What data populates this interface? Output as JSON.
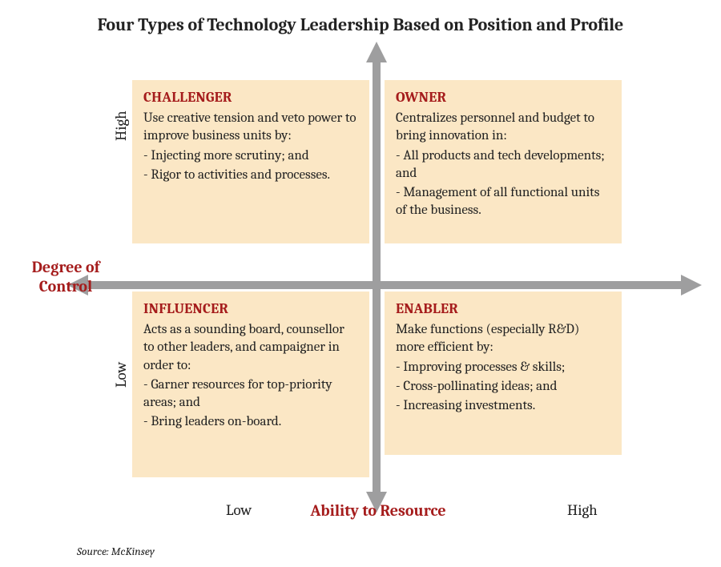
{
  "type": "quadrant-2x2",
  "title": "Four Types of Technology Leadership Based on Position and Profile",
  "source": "Source: McKinsey",
  "colors": {
    "background": "#ffffff",
    "quadrant_fill": "#fbe7c5",
    "axis": "#9e9e9f",
    "accent_text": "#a51c1c",
    "body_text": "#222222"
  },
  "fontsize": {
    "title": 22,
    "axis_title": 20,
    "axis_tick": 19,
    "quad_heading": 18,
    "body": 17,
    "source": 14
  },
  "y_axis": {
    "title": "Degree of Control",
    "high_label": "High",
    "low_label": "Low"
  },
  "x_axis": {
    "title": "Ability to Resource",
    "high_label": "High",
    "low_label": "Low"
  },
  "quadrants": {
    "top_left": {
      "heading": "CHALLENGER",
      "lead": "Use creative tension and veto power to improve business units by:",
      "bullets": [
        "- Injecting more scrutiny; and",
        "- Rigor to activities and processes."
      ]
    },
    "top_right": {
      "heading": "OWNER",
      "lead": "Centralizes personnel and budget to bring innovation in:",
      "bullets": [
        "- All products and tech developments; and",
        "- Management of all functional units of the business."
      ]
    },
    "bottom_left": {
      "heading": "INFLUENCER",
      "lead": "Acts as a sounding board, counsellor to other leaders, and campaigner in order to:",
      "bullets": [
        "- Garner resources for top-priority areas; and",
        "- Bring leaders on-board."
      ]
    },
    "bottom_right": {
      "heading": "ENABLER",
      "lead": "Make functions (especially R&D) more efficient by:",
      "bullets": [
        "- Improving processes & skills;",
        "- Cross-pollinating ideas; and",
        "- Increasing investments."
      ]
    }
  }
}
